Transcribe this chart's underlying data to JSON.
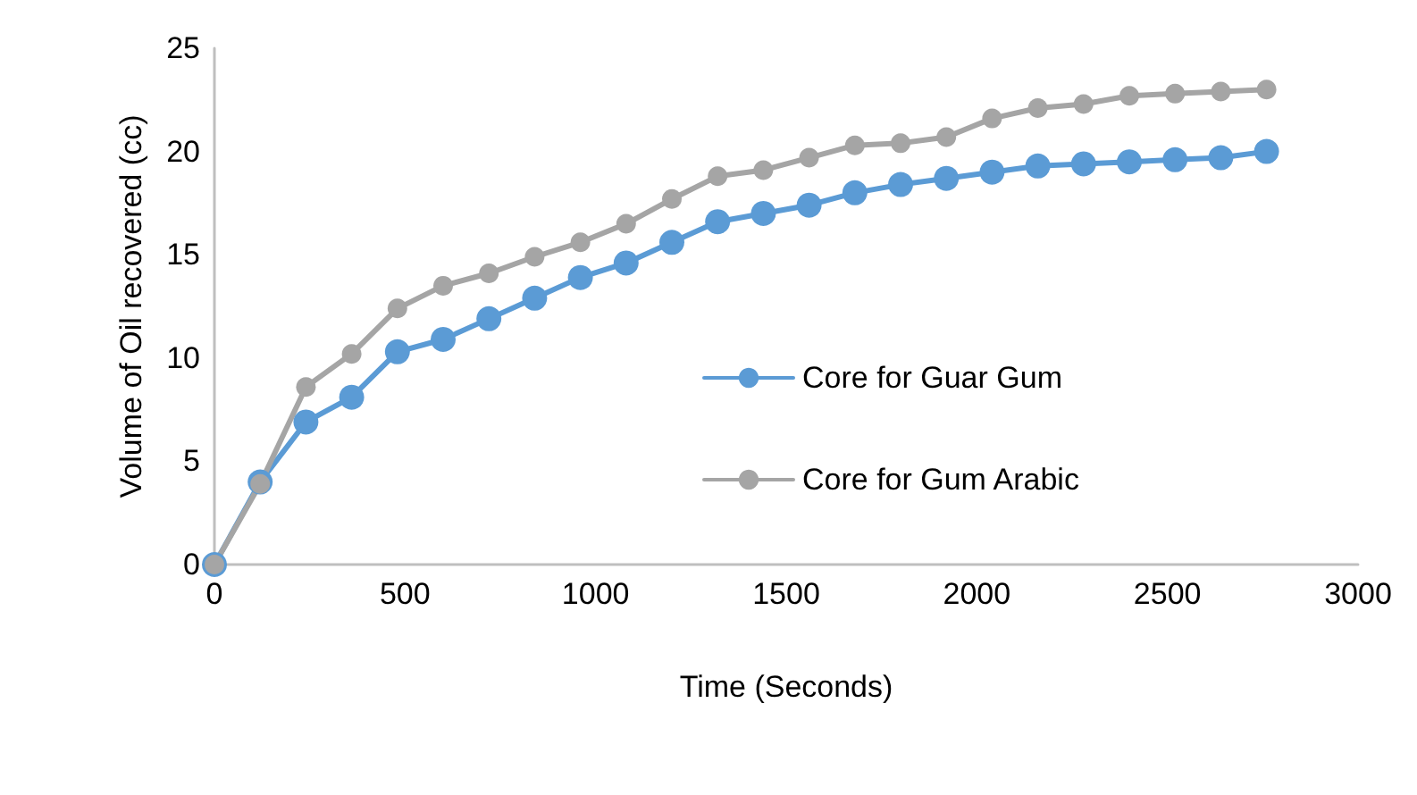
{
  "chart_data": {
    "type": "line",
    "xlabel": "Time (Seconds)",
    "ylabel": "Volume of Oil recovered (cc)",
    "x": [
      0,
      120,
      240,
      360,
      480,
      600,
      720,
      840,
      960,
      1080,
      1200,
      1320,
      1440,
      1560,
      1680,
      1800,
      1920,
      2040,
      2160,
      2280,
      2400,
      2520,
      2640,
      2760
    ],
    "series": [
      {
        "name": "Core for Guar Gum",
        "color": "#5b9bd5",
        "values": [
          0,
          4,
          6.9,
          8.1,
          10.3,
          10.9,
          11.9,
          12.9,
          13.9,
          14.6,
          15.6,
          16.6,
          17.0,
          17.4,
          18.0,
          18.4,
          18.7,
          19.0,
          19.3,
          19.4,
          19.5,
          19.6,
          19.7,
          20.0
        ]
      },
      {
        "name": "Core for Gum Arabic",
        "color": "#a5a5a5",
        "values": [
          0,
          3.9,
          8.6,
          10.2,
          12.4,
          13.5,
          14.1,
          14.9,
          15.6,
          16.5,
          17.7,
          18.8,
          19.1,
          19.7,
          20.3,
          20.4,
          20.7,
          21.6,
          22.1,
          22.3,
          22.7,
          22.8,
          22.9,
          23.0
        ]
      }
    ],
    "xlim": [
      0,
      3000
    ],
    "xticks": [
      0,
      500,
      1000,
      1500,
      2000,
      2500,
      3000
    ],
    "ylim": [
      0,
      25
    ],
    "yticks": [
      0,
      5,
      10,
      15,
      20,
      25
    ],
    "grid": false,
    "legend": "right",
    "marker": "circle",
    "line_style": "solid"
  }
}
